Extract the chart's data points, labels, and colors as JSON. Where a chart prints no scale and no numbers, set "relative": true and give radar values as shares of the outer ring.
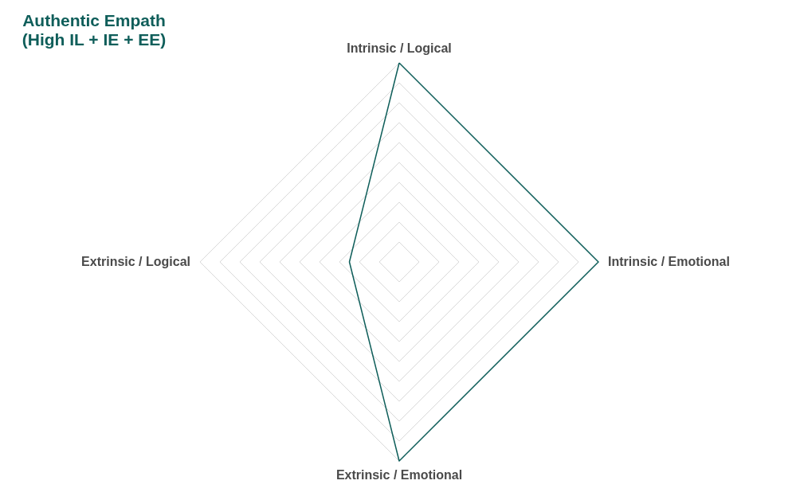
{
  "chart_data": {
    "type": "radar",
    "title": "Authentic Empath\n(High IL + IE + EE)",
    "relative": true,
    "grid": true,
    "categories": [
      "Intrinsic / Logical",
      "Intrinsic / Emotional",
      "Extrinsic / Emotional",
      "Extrinsic / Logical"
    ],
    "series": [
      {
        "color": "#0f5e5a",
        "values": [
          1,
          1,
          1,
          0.25
        ]
      }
    ]
  }
}
